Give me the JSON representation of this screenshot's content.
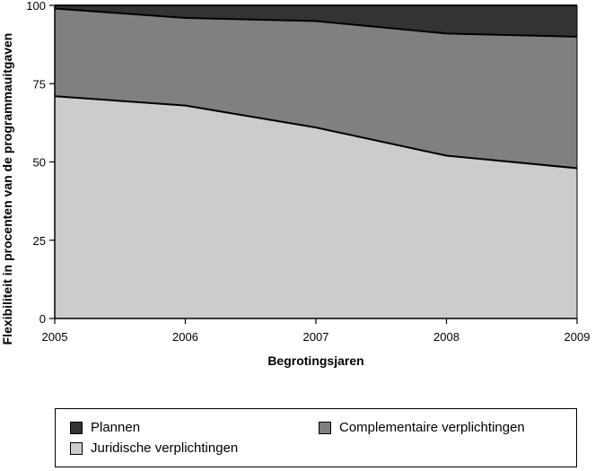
{
  "chart_data": {
    "type": "area",
    "stacked": true,
    "x": [
      2005,
      2006,
      2007,
      2008,
      2009
    ],
    "series": [
      {
        "name": "Juridische verplichtingen",
        "values": [
          71,
          68,
          61,
          52,
          48
        ],
        "color": "#cccccc"
      },
      {
        "name": "Complementaire verplichtingen",
        "values": [
          28,
          28,
          34,
          39,
          42
        ],
        "color": "#808080"
      },
      {
        "name": "Plannen",
        "values": [
          1,
          4,
          5,
          9,
          10
        ],
        "color": "#333333"
      }
    ],
    "xlabel": "Begrotingsjaren",
    "ylabel": "Flexibiliteit in procenten van de programmauitgaven",
    "ylim": [
      0,
      100
    ],
    "yticks": [
      0,
      25,
      50,
      75,
      100
    ],
    "xticks": [
      "2005",
      "2006",
      "2007",
      "2008",
      "2009"
    ],
    "legend_position": "bottom",
    "grid": false
  },
  "legend": {
    "plannen": "Plannen",
    "complementaire": "Complementaire verplichtingen",
    "juridische": "Juridische verplichtingen"
  },
  "colors": {
    "plannen": "#333333",
    "complementaire": "#808080",
    "juridische": "#cccccc"
  }
}
